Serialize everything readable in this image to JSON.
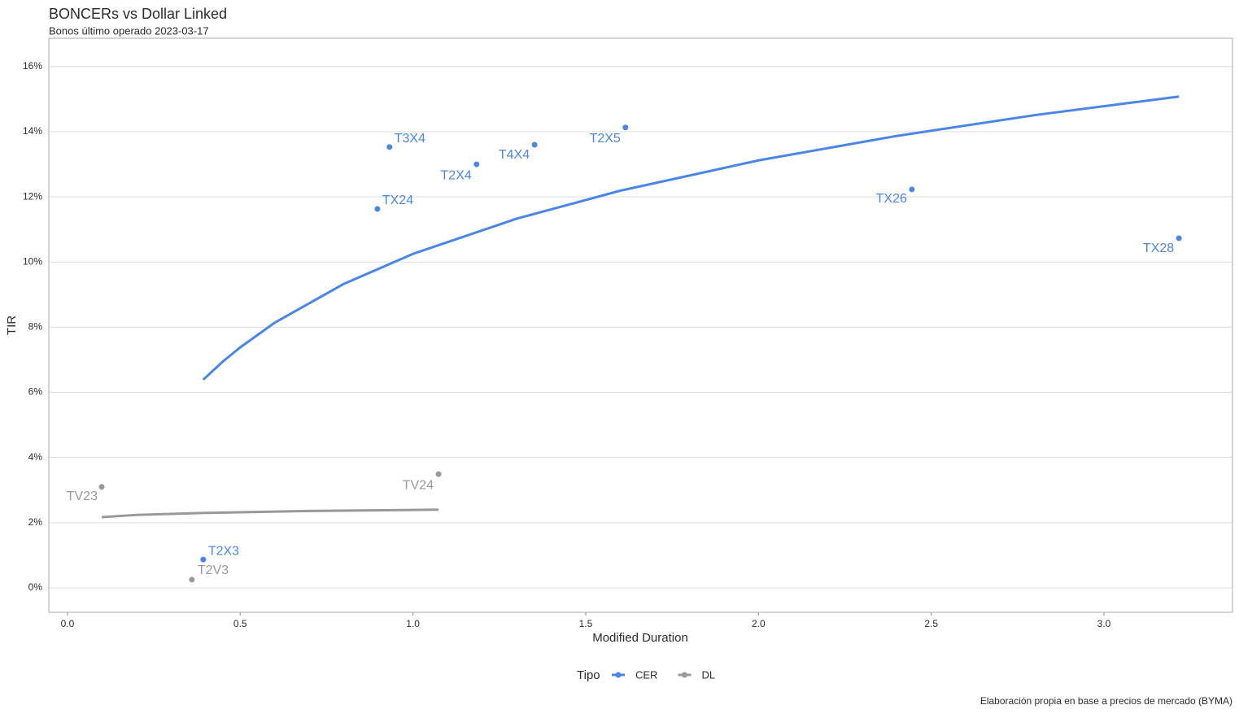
{
  "chart_data": {
    "type": "scatter",
    "title": "BONCERs vs Dollar Linked",
    "subtitle": "Bonos último operado 2023-03-17",
    "x_label": "Modified Duration",
    "y_label": "TIR",
    "legend_title": "Tipo",
    "caption": "Elaboración propia en base a precios de mercado (BYMA)",
    "xlim": [
      -0.054,
      3.372
    ],
    "ylim": [
      -0.75,
      16.87
    ],
    "xticks": [
      {
        "value": 0,
        "label": "0.0"
      },
      0.5,
      {
        "value": 1,
        "label": "1.0"
      },
      1.5,
      {
        "value": 2,
        "label": "2.0"
      },
      2.5,
      {
        "value": 3,
        "label": "3.0"
      }
    ],
    "yticks": [
      {
        "value": 0,
        "label": "0%"
      },
      {
        "value": 2,
        "label": "2%"
      },
      {
        "value": 4,
        "label": "4%"
      },
      {
        "value": 6,
        "label": "6%"
      },
      {
        "value": 8,
        "label": "8%"
      },
      {
        "value": 10,
        "label": "10%"
      },
      {
        "value": 12,
        "label": "12%"
      },
      {
        "value": 14,
        "label": "14%"
      },
      {
        "value": 16,
        "label": "16%"
      }
    ],
    "grid": true,
    "series": [
      {
        "name": "CER",
        "color": "#4a86e8",
        "labels": [
          "T3X4",
          "T2X4",
          "T4X4",
          "T2X5",
          "TX24",
          "TX26",
          "TX28",
          "T2X3"
        ],
        "x": [
          0.932,
          1.184,
          1.352,
          1.615,
          0.897,
          2.444,
          3.217,
          0.393
        ],
        "values": [
          13.53,
          13.0,
          13.6,
          14.13,
          11.63,
          12.23,
          10.73,
          0.87
        ],
        "trend": {
          "x": [
            0.393,
            0.45,
            0.5,
            0.6,
            0.8,
            1.0,
            1.3,
            1.6,
            2.0,
            2.4,
            2.8,
            3.217
          ],
          "values": [
            6.39,
            6.95,
            7.38,
            8.14,
            9.33,
            10.25,
            11.33,
            12.19,
            13.12,
            13.87,
            14.51,
            15.08
          ]
        }
      },
      {
        "name": "DL",
        "color": "#999999",
        "labels": [
          "TV23",
          "TV24",
          "T2V3"
        ],
        "x": [
          0.099,
          1.074,
          0.36
        ],
        "values": [
          3.1,
          3.49,
          0.25
        ],
        "trend": {
          "x": [
            0.099,
            0.2,
            0.4,
            0.7,
            1.074
          ],
          "values": [
            2.17,
            2.24,
            2.3,
            2.36,
            2.4
          ]
        }
      }
    ]
  }
}
